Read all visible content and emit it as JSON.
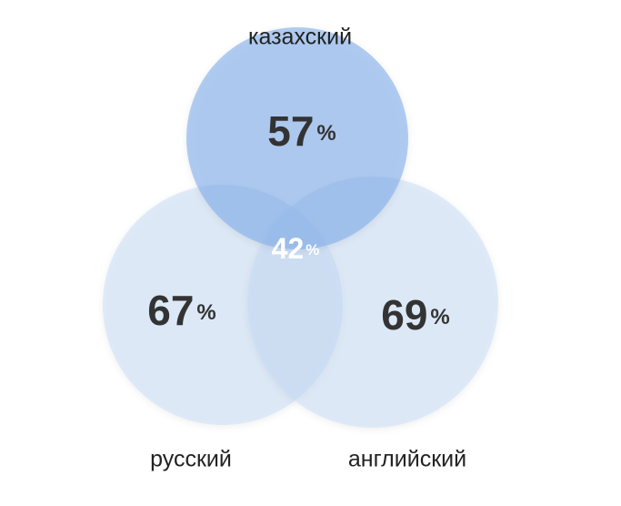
{
  "chart_data": {
    "type": "venn",
    "sets": [
      {
        "name": "казахский",
        "value": 57,
        "color": "#7fabea"
      },
      {
        "name": "русский",
        "value": 67,
        "color": "#c3daf6"
      },
      {
        "name": "английский",
        "value": 69,
        "color": "#c3daf6"
      }
    ],
    "intersection": {
      "value": 42
    },
    "unit": "%"
  }
}
